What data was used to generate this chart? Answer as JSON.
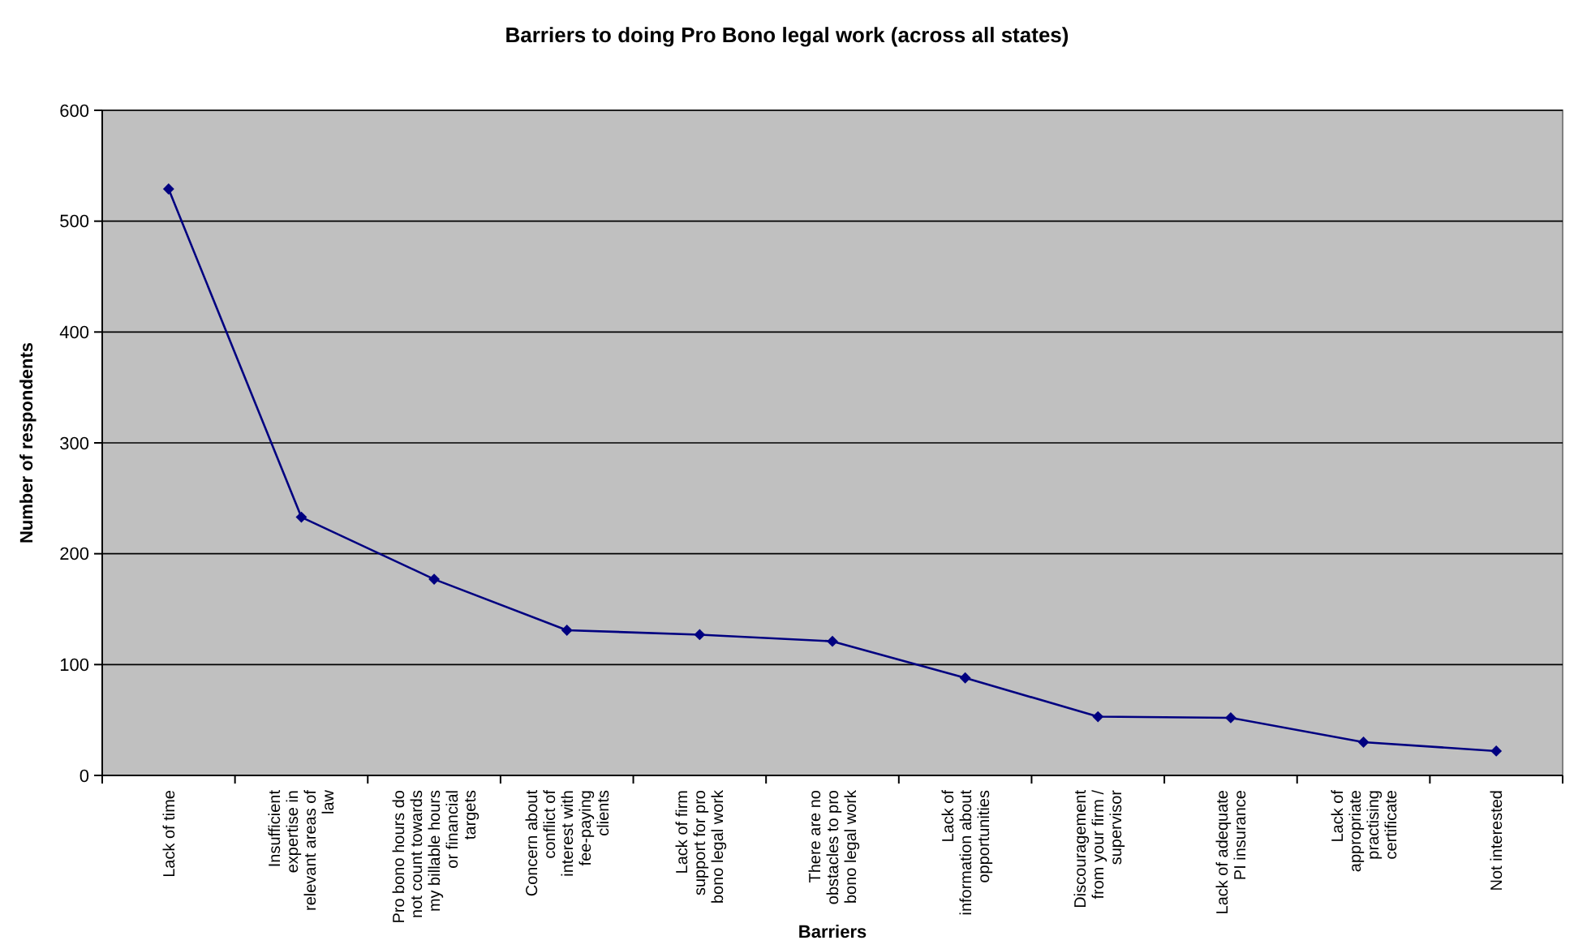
{
  "chart_data": {
    "type": "line",
    "title": "Barriers to doing Pro Bono legal work (across all states)",
    "xlabel": "Barriers",
    "ylabel": "Number of respondents",
    "categories": [
      "Lack of time",
      "Insufficient expertise in relevant areas of law",
      "Pro bono hours do not count towards my billable hours or financial targets",
      "Concern about conflict of interest with fee-paying clients",
      "Lack of firm support for pro bono legal work",
      "There are no obstacles to pro bono legal work",
      "Lack of information about opportunities",
      "Discouragement from your firm / supervisor",
      "Lack of adequate PI insurance",
      "Lack of appropriate practising certificate",
      "Not interested"
    ],
    "series": [
      {
        "color": "#000080",
        "values": [
          529,
          233,
          177,
          131,
          127,
          121,
          88,
          53,
          52,
          30,
          22
        ]
      }
    ],
    "ylim": [
      0,
      600
    ],
    "yticks": [
      0,
      100,
      200,
      300,
      400,
      500,
      600
    ],
    "grid": "y",
    "marker": "diamond",
    "line_style": "solid"
  }
}
